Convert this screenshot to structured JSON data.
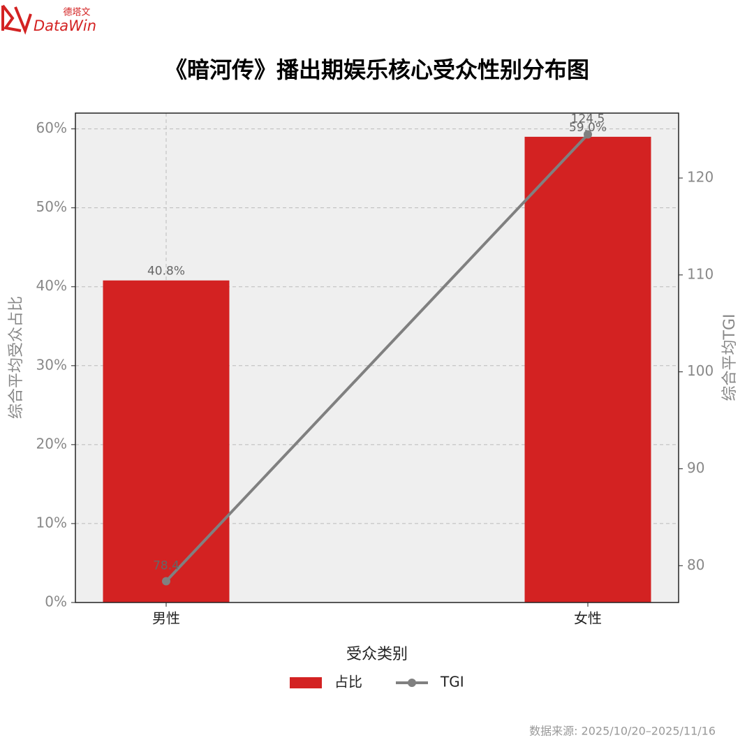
{
  "logo": {
    "cn": "德塔文",
    "en": "DataWin"
  },
  "chart_data": {
    "type": "bar",
    "title": "《暗河传》播出期娱乐核心受众性别分布图",
    "x_label": "受众类别",
    "y_label": "综合平均受众占比",
    "y2_label": "综合平均TGI",
    "categories": [
      "男性",
      "女性"
    ],
    "series": [
      {
        "name": "占比",
        "type": "bar",
        "color": "#d32222",
        "values": [
          40.8,
          59.0
        ],
        "value_labels": [
          "40.8%",
          "59.0%"
        ]
      },
      {
        "name": "TGI",
        "type": "line",
        "axis": "y2",
        "color": "#808080",
        "values": [
          78.4,
          124.5
        ]
      }
    ],
    "ylim": [
      0,
      62
    ],
    "yticks": [
      {
        "value": 0,
        "label": "0%"
      },
      {
        "value": 10,
        "label": "10%"
      },
      {
        "value": 20,
        "label": "20%"
      },
      {
        "value": 30,
        "label": "30%"
      },
      {
        "value": 40,
        "label": "40%"
      },
      {
        "value": 50,
        "label": "50%"
      },
      {
        "value": 60,
        "label": "60%"
      }
    ],
    "y2lim": [
      76.2,
      126.7
    ],
    "y2ticks": [
      80,
      90,
      100,
      110,
      120
    ],
    "grid": true,
    "legend": "bottom",
    "source": "数据来源: 2025/10/20–2025/11/16"
  }
}
